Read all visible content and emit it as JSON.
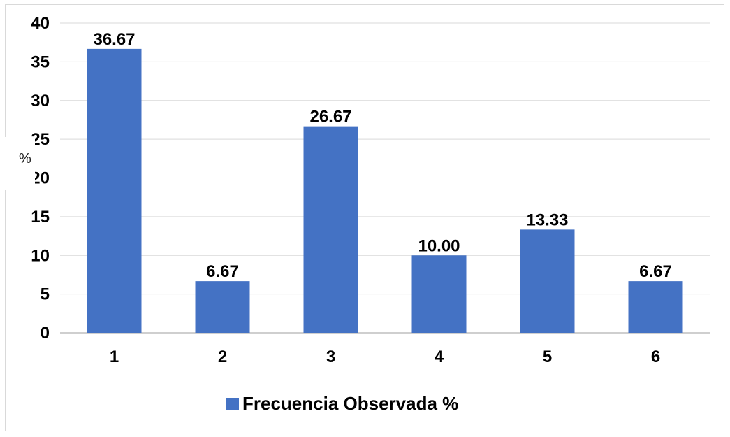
{
  "chart_data": {
    "type": "bar",
    "categories": [
      "1",
      "2",
      "3",
      "4",
      "5",
      "6"
    ],
    "series": [
      {
        "name": "Frecuencia Observada %",
        "values": [
          36.67,
          6.67,
          26.67,
          10.0,
          13.33,
          6.67
        ],
        "labels": [
          "36.67",
          "6.67",
          "26.67",
          "10.00",
          "13.33",
          "6.67"
        ],
        "color": "#4472c4"
      }
    ],
    "ylabel": "%",
    "ylim": [
      0,
      40
    ],
    "yticks": [
      "0",
      "5",
      "10",
      "15",
      "20",
      "25",
      "30",
      "35",
      "40"
    ],
    "grid": true,
    "legend": "bottom"
  }
}
